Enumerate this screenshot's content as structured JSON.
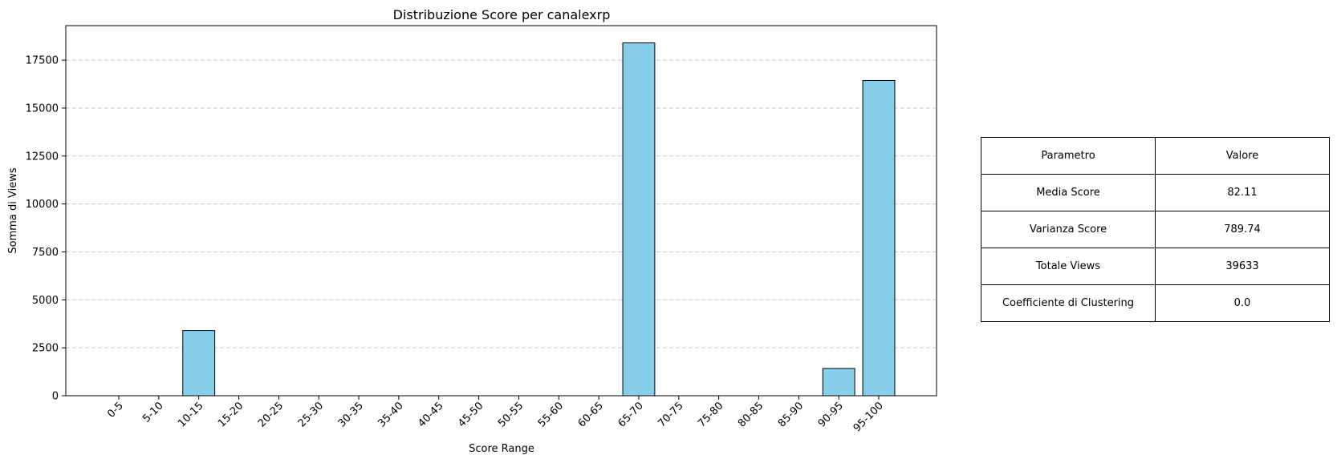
{
  "chart_data": {
    "type": "bar",
    "title": "Distribuzione Score per canalexrp",
    "xlabel": "Score Range",
    "ylabel": "Somma di Views",
    "categories": [
      "0-5",
      "5-10",
      "10-15",
      "15-20",
      "20-25",
      "25-30",
      "30-35",
      "35-40",
      "40-45",
      "45-50",
      "50-55",
      "55-60",
      "60-65",
      "65-70",
      "70-75",
      "75-80",
      "80-85",
      "85-90",
      "90-95",
      "95-100"
    ],
    "values": [
      0,
      0,
      3400,
      0,
      0,
      0,
      0,
      0,
      0,
      0,
      0,
      0,
      0,
      18400,
      0,
      0,
      0,
      0,
      1420,
      16440
    ],
    "ylim": [
      0,
      19300
    ],
    "yticks": [
      0,
      2500,
      5000,
      7500,
      10000,
      12500,
      15000,
      17500
    ],
    "grid": "y-dashed",
    "bar_color": "#87ceeb",
    "edge_color": "#000000"
  },
  "table": {
    "headers": [
      "Parametro",
      "Valore"
    ],
    "rows": [
      [
        "Media Score",
        "82.11"
      ],
      [
        "Varianza Score",
        "789.74"
      ],
      [
        "Totale Views",
        "39633"
      ],
      [
        "Coefficiente di Clustering",
        "0.0"
      ]
    ]
  }
}
